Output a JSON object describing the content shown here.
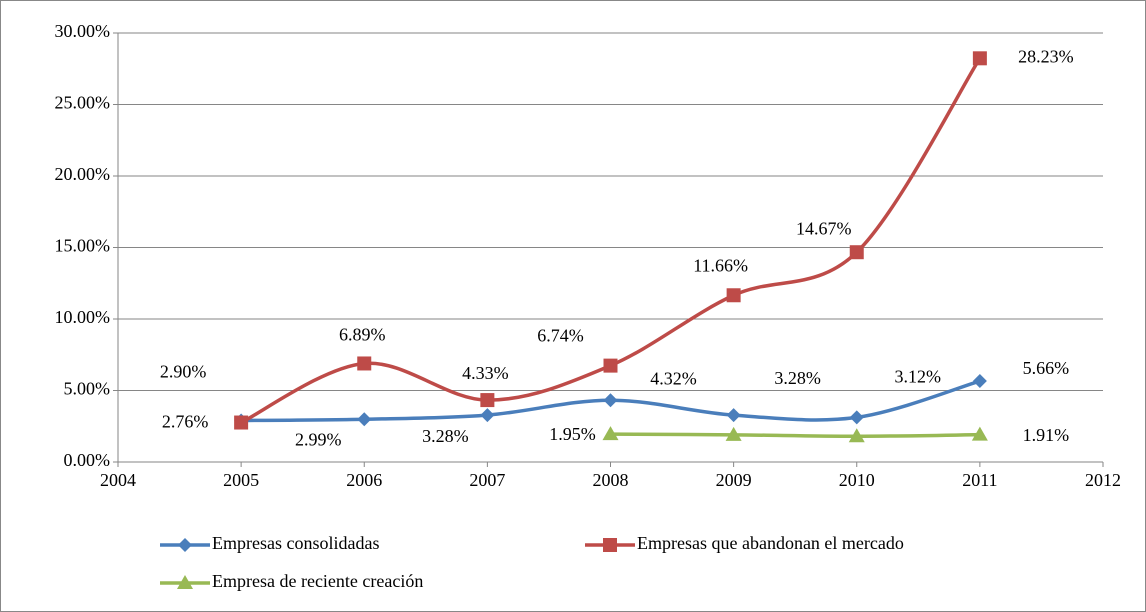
{
  "chart_data": {
    "type": "line",
    "x": [
      2005,
      2006,
      2007,
      2008,
      2009,
      2010,
      2011
    ],
    "xlim": [
      2004,
      2012
    ],
    "xticks": [
      2004,
      2005,
      2006,
      2007,
      2008,
      2009,
      2010,
      2011,
      2012
    ],
    "ylim": [
      0,
      30
    ],
    "yticks": [
      {
        "value": 0,
        "label": "0.00%"
      },
      {
        "value": 5,
        "label": "5.00%"
      },
      {
        "value": 10,
        "label": "10.00%"
      },
      {
        "value": 15,
        "label": "15.00%"
      },
      {
        "value": 20,
        "label": "20.00%"
      },
      {
        "value": 25,
        "label": "25.00%"
      },
      {
        "value": 30,
        "label": "30.00%"
      }
    ],
    "grid": true,
    "series": [
      {
        "name": "Empresas consolidadas",
        "color": "#4a7ebb",
        "marker": "diamond",
        "values": [
          2.9,
          2.99,
          3.28,
          4.32,
          3.28,
          3.12,
          5.66
        ],
        "value_labels": [
          "2.90%",
          "2.99%",
          "3.28%",
          "4.32%",
          "3.28%",
          "3.12%",
          "5.66%"
        ]
      },
      {
        "name": "Empresas que abandonan el mercado",
        "color": "#be4b48",
        "marker": "square",
        "values": [
          2.76,
          6.89,
          4.33,
          6.74,
          11.66,
          14.67,
          28.23
        ],
        "value_labels": [
          "2.76%",
          "6.89%",
          "4.33%",
          "6.74%",
          "11.66%",
          "14.67%",
          "28.23%"
        ]
      },
      {
        "name": "Empresa de reciente creación",
        "color": "#98b954",
        "marker": "triangle",
        "values": [
          null,
          null,
          null,
          1.95,
          1.9,
          1.8,
          1.91
        ],
        "value_labels": [
          null,
          null,
          null,
          "1.95%",
          null,
          null,
          "1.91%"
        ]
      }
    ]
  }
}
